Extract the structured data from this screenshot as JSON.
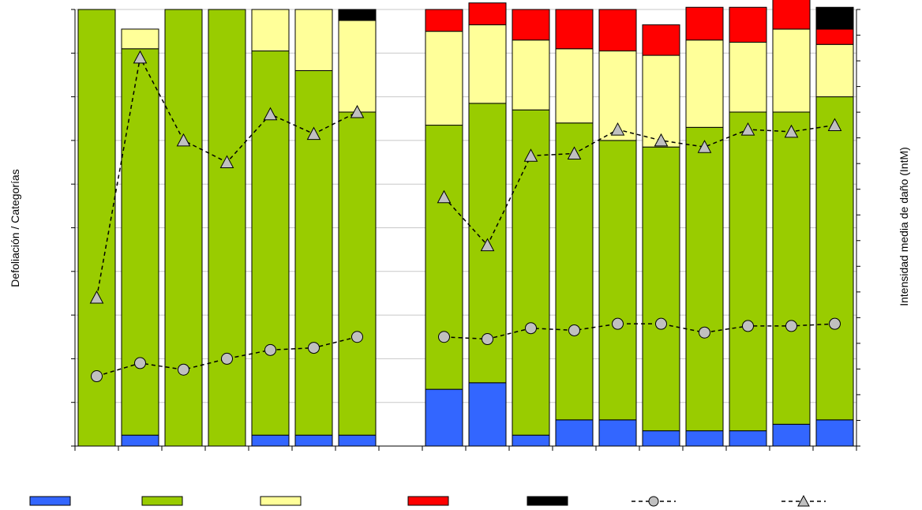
{
  "chart_data": {
    "type": "bar",
    "stacked": true,
    "ylabel_left": "Defoliación / Categorías",
    "ylabel_right": "Intensidad media de daño (IntM)",
    "ylim_left": [
      0,
      100
    ],
    "ylim_right": [
      0,
      100
    ],
    "grid": "horizontal",
    "legend_position": "bottom",
    "gap_after_bar": 7,
    "bar_series": [
      {
        "color": "#3366ff",
        "values": [
          0,
          2.5,
          0,
          0,
          2.5,
          2.5,
          2.5,
          13,
          14.5,
          2.5,
          6,
          6,
          3.5,
          3.5,
          3.5,
          5,
          6
        ]
      },
      {
        "color": "#99cc00",
        "values": [
          100,
          88.5,
          100,
          100,
          88,
          83.5,
          74,
          60.5,
          64,
          74.5,
          68,
          64,
          65,
          69.5,
          73,
          71.5,
          74
        ]
      },
      {
        "color": "#ffff99",
        "values": [
          0,
          4.5,
          0,
          0,
          9.5,
          14,
          21,
          21.5,
          18,
          16,
          17,
          20.5,
          21,
          20,
          16,
          19,
          12
        ]
      },
      {
        "color": "#ff0000",
        "values": [
          0,
          0,
          0,
          0,
          0,
          0,
          0,
          5,
          5,
          7,
          9,
          9.5,
          7,
          7.5,
          8,
          8,
          3.5
        ]
      },
      {
        "color": "#000000",
        "values": [
          0,
          0,
          0,
          0,
          0,
          0,
          2.5,
          0,
          0,
          0,
          0,
          0,
          0,
          0,
          0,
          0,
          5
        ]
      }
    ],
    "line_series": [
      {
        "marker": "circle",
        "color": "#000000",
        "marker_fill": "#c0c0c0",
        "values": [
          16,
          19,
          17.5,
          20,
          22,
          22.5,
          25,
          25,
          24.5,
          27,
          26.5,
          28,
          28,
          26,
          27.5,
          27.5,
          28
        ]
      },
      {
        "marker": "triangle",
        "color": "#000000",
        "marker_fill": "#c0c0c0",
        "values": [
          34,
          89,
          70,
          65,
          76,
          71.5,
          76.5,
          57,
          46,
          66.5,
          67,
          72.5,
          70,
          68.5,
          72.5,
          72,
          73.5
        ]
      }
    ]
  }
}
